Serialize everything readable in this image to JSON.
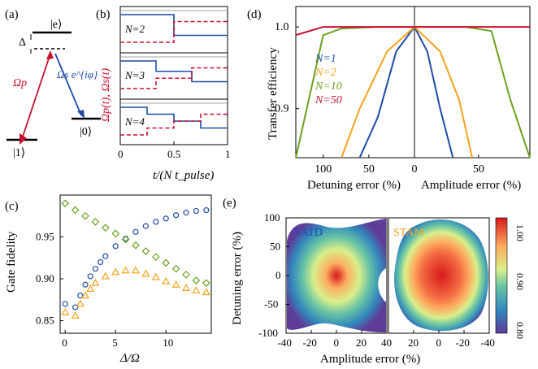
{
  "colors": {
    "red": "#c8102e",
    "blue": "#1f4aa8",
    "green": "#6aa11c",
    "orange": "#f5a21a",
    "gray": "#8a8a8a"
  },
  "panel_a": {
    "label": "(a)",
    "state_e": "|e⟩",
    "state_1": "|1⟩",
    "state_0": "|0⟩",
    "delta": "Δ",
    "omega_p": "Ωp",
    "omega_s": "Ωs e^{iφ}"
  },
  "panel_b": {
    "label": "(b)",
    "ylabel": "Ωp(t), Ωs(t)",
    "xlabel": "t/(N t_pulse)",
    "xticks": [
      "0",
      "0.5",
      "1"
    ],
    "subplots": [
      {
        "label": "N=2"
      },
      {
        "label": "N=3"
      },
      {
        "label": "N=4"
      }
    ]
  },
  "panel_c": {
    "label": "(c)",
    "ylabel": "Gate fidelity",
    "xlabel": "Δ/Ω",
    "xticks": [
      "0",
      "5",
      "10"
    ],
    "yticks": [
      "0.85",
      "0.90",
      "0.95"
    ]
  },
  "panel_d": {
    "label": "(d)",
    "ylabel": "Transfer efficiency",
    "xlabel_left": "Detuning error (%)",
    "xlabel_right": "Amplitude error (%)",
    "xticks_left": [
      "100",
      "50",
      "0"
    ],
    "xticks_right": [
      "50"
    ],
    "yticks": [
      "1.0",
      "0.9"
    ],
    "legend": [
      "N=1",
      "N=2",
      "N=10",
      "N=50"
    ]
  },
  "panel_e": {
    "label": "(e)",
    "ylabel": "Detuning error (%)",
    "xlabel": "Amplitude error (%)",
    "title_left": "SATD",
    "title_right": "STAM",
    "xticks": [
      "-40",
      "-20",
      "0",
      "20",
      "40",
      "20",
      "0",
      "-20",
      "-40"
    ],
    "yticks": [
      "100",
      "50",
      "0",
      "-50",
      "-100"
    ],
    "colorbar_ticks": [
      "1.00",
      "0.90",
      "0.80"
    ],
    "colorbar_range": [
      0.8,
      1.0
    ]
  },
  "chart_data": [
    {
      "type": "line",
      "panel": "b",
      "xlabel": "t/(N t_pulse)",
      "ylabel": "Ωp(t), Ωs(t)",
      "xlim": [
        0,
        1
      ],
      "subplots": [
        {
          "name": "N=2",
          "omega_p_switch": [
            0.5
          ],
          "omega_s_switch": [
            0.5
          ]
        },
        {
          "name": "N=3",
          "omega_p_switch": [
            0.333,
            0.667
          ],
          "omega_s_switch": [
            0.333,
            0.667
          ]
        },
        {
          "name": "N=4",
          "omega_p_switch": [
            0.25,
            0.5,
            0.75
          ],
          "omega_s_switch": [
            0.25,
            0.5,
            0.75
          ]
        }
      ]
    },
    {
      "type": "scatter",
      "panel": "c",
      "xlabel": "Δ/Ω",
      "ylabel": "Gate fidelity",
      "xlim": [
        -0.5,
        14.5
      ],
      "ylim": [
        0.835,
        1.0
      ],
      "series": [
        {
          "marker": "circle",
          "color": "blue",
          "x": [
            0,
            1,
            1.5,
            2,
            2.5,
            3,
            3.5,
            4,
            5,
            6,
            7,
            8,
            9,
            10,
            11,
            12,
            13,
            14
          ],
          "y": [
            0.87,
            0.866,
            0.88,
            0.893,
            0.903,
            0.912,
            0.92,
            0.927,
            0.939,
            0.948,
            0.956,
            0.963,
            0.968,
            0.972,
            0.976,
            0.979,
            0.981,
            0.982
          ]
        },
        {
          "marker": "diamond",
          "color": "green",
          "x": [
            0,
            1,
            2,
            3,
            4,
            5,
            6,
            7,
            8,
            9,
            10,
            11,
            12,
            13,
            14
          ],
          "y": [
            0.99,
            0.982,
            0.975,
            0.968,
            0.961,
            0.954,
            0.947,
            0.94,
            0.933,
            0.926,
            0.919,
            0.912,
            0.905,
            0.898,
            0.895
          ]
        },
        {
          "marker": "triangle",
          "color": "orange",
          "x": [
            0,
            1,
            1.5,
            2,
            2.5,
            3,
            4,
            5,
            6,
            7,
            8,
            9,
            10,
            11,
            12,
            13,
            14
          ],
          "y": [
            0.86,
            0.856,
            0.87,
            0.88,
            0.888,
            0.895,
            0.903,
            0.908,
            0.91,
            0.91,
            0.906,
            0.902,
            0.897,
            0.893,
            0.889,
            0.886,
            0.884
          ]
        }
      ]
    },
    {
      "type": "line",
      "panel": "d",
      "ylabel": "Transfer efficiency",
      "ylim": [
        0.84,
        1.025
      ],
      "series": [
        {
          "name": "N=1",
          "color": "blue",
          "detuning_x": [
            0,
            20,
            40,
            60
          ],
          "detuning_y": [
            1.0,
            0.97,
            0.89,
            0.78
          ],
          "amplitude_x": [
            0,
            10,
            20,
            30
          ],
          "amplitude_y": [
            1.0,
            0.97,
            0.9,
            0.79
          ]
        },
        {
          "name": "N=2",
          "color": "orange",
          "detuning_x": [
            0,
            30,
            60,
            80
          ],
          "detuning_y": [
            1.0,
            0.97,
            0.9,
            0.84
          ],
          "amplitude_x": [
            0,
            20,
            35,
            45
          ],
          "amplitude_y": [
            1.0,
            0.97,
            0.91,
            0.84
          ]
        },
        {
          "name": "N=10",
          "color": "green",
          "detuning_x": [
            0,
            40,
            80,
            100,
            130
          ],
          "detuning_y": [
            1.0,
            1.0,
            0.998,
            0.99,
            0.84
          ],
          "amplitude_x": [
            0,
            40,
            60,
            75,
            90
          ],
          "amplitude_y": [
            1.0,
            1.0,
            0.995,
            0.91,
            0.84
          ]
        },
        {
          "name": "N=50",
          "color": "red",
          "detuning_x": [
            0,
            100,
            130
          ],
          "detuning_y": [
            1.0,
            1.0,
            0.99
          ],
          "amplitude_x": [
            0,
            90
          ],
          "amplitude_y": [
            1.0,
            1.0
          ]
        }
      ]
    },
    {
      "type": "heatmap",
      "panel": "e",
      "xlabel": "Amplitude error (%)",
      "ylabel": "Detuning error (%)",
      "xlim": [
        -40,
        40
      ],
      "ylim": [
        -100,
        100
      ],
      "zlim": [
        0.8,
        1.0
      ],
      "maps": [
        {
          "name": "SATD",
          "peak": [
            0,
            0
          ],
          "peak_value": 1.0
        },
        {
          "name": "STAM",
          "peak": [
            0,
            0
          ],
          "peak_value": 1.0
        }
      ]
    }
  ]
}
